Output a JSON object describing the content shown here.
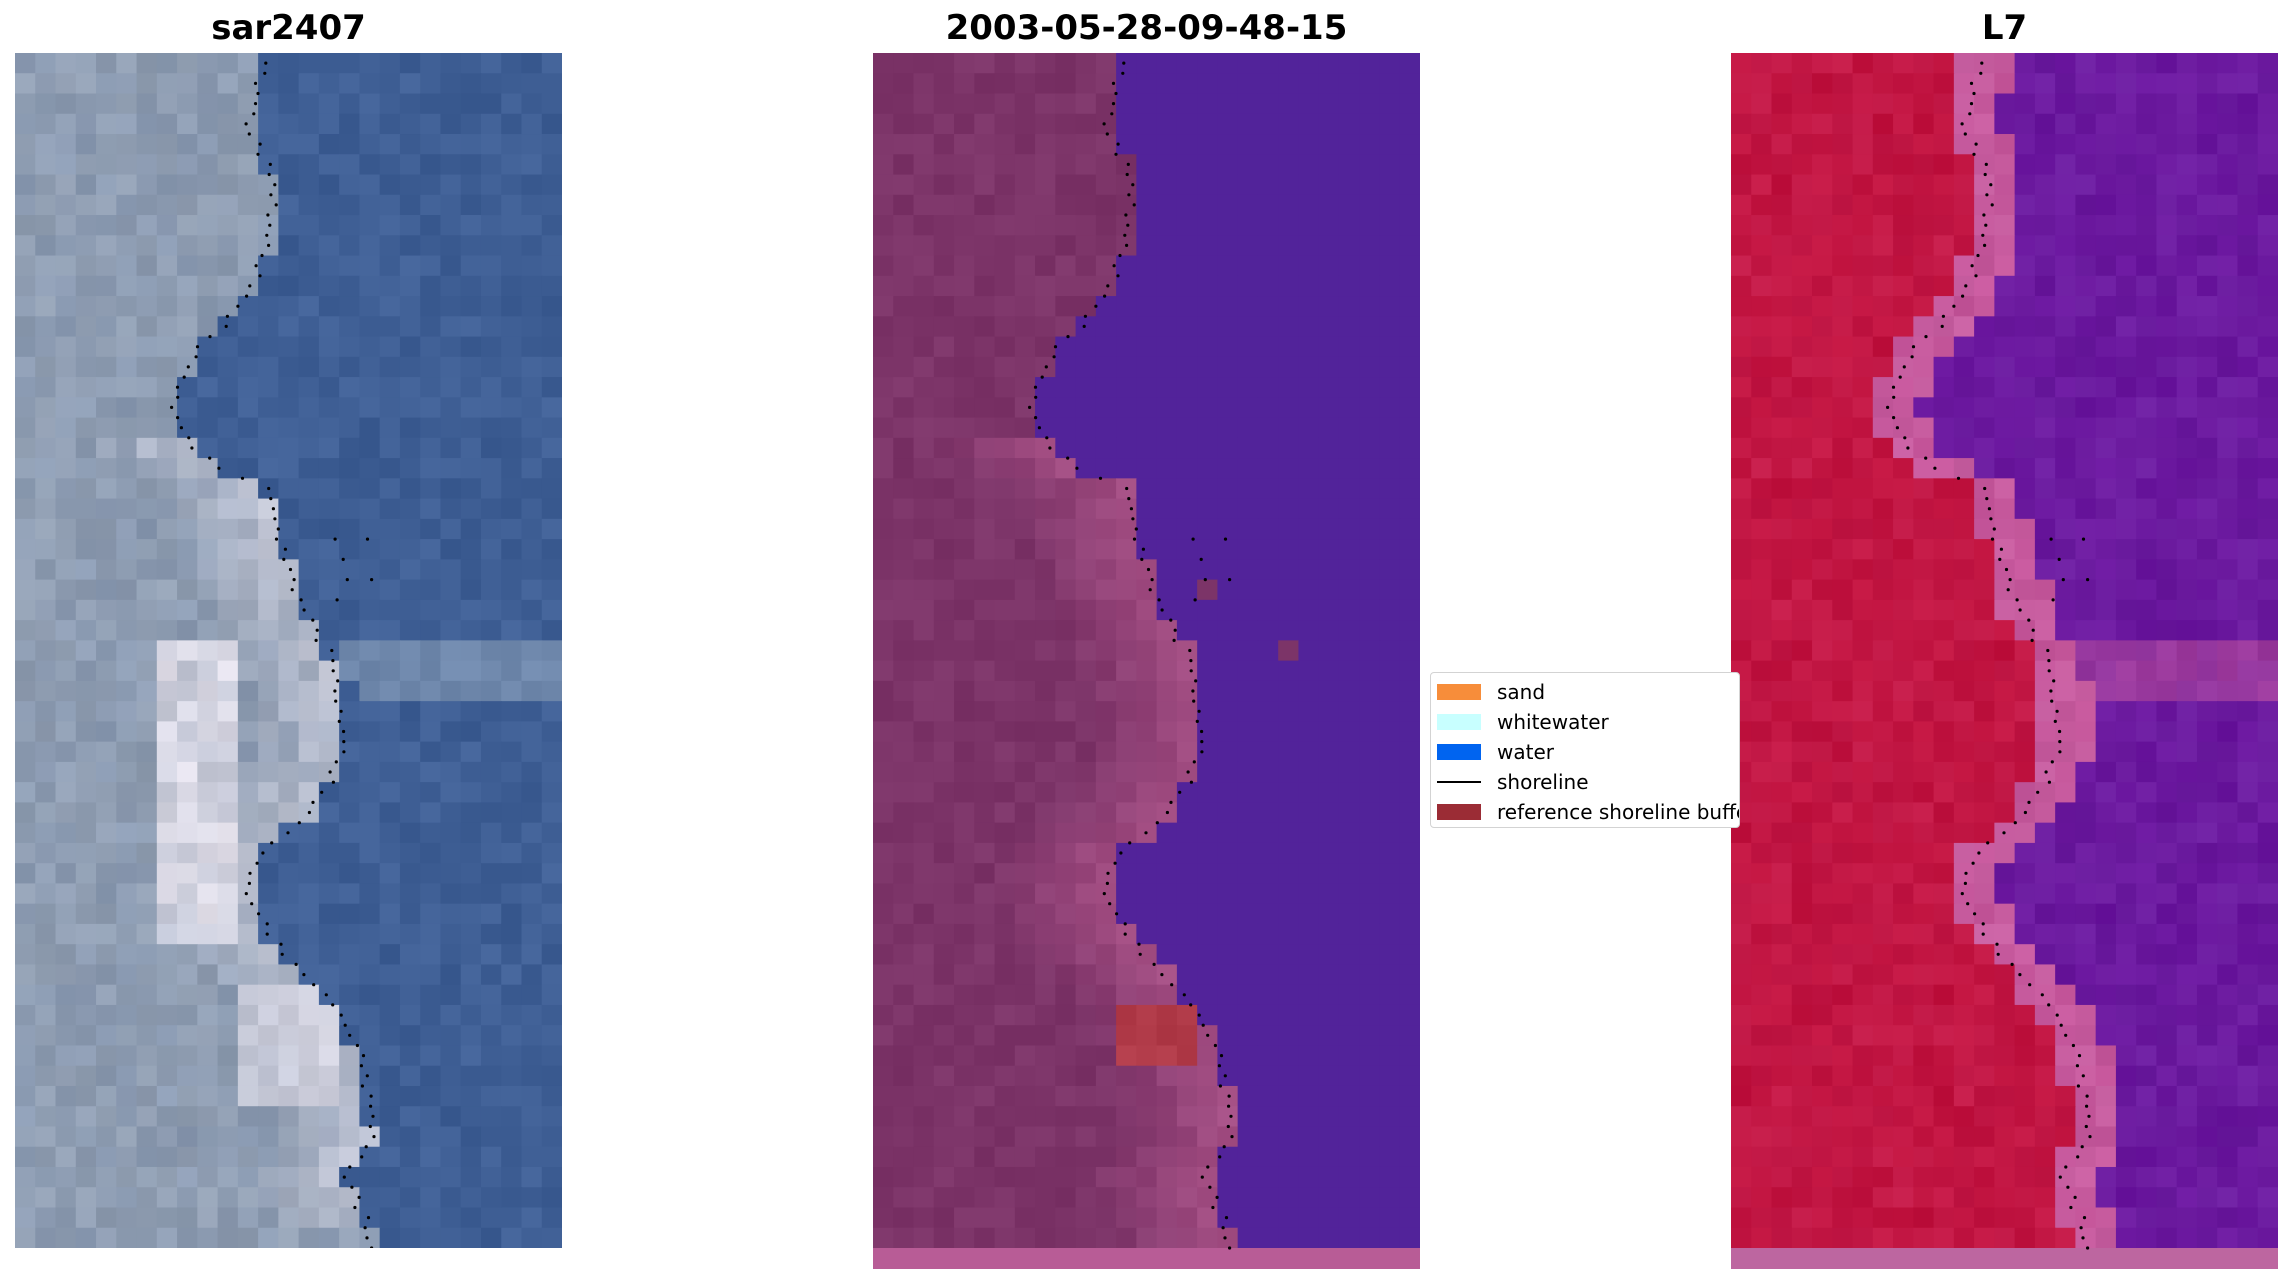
{
  "panels": [
    {
      "title": "sar2407",
      "kind": "rgb"
    },
    {
      "title": "2003-05-28-09-48-15",
      "kind": "classified"
    },
    {
      "title": "L7",
      "kind": "index"
    }
  ],
  "legend": {
    "items": [
      {
        "label": "sand",
        "type": "patch",
        "color": "#f78d3a"
      },
      {
        "label": "whitewater",
        "type": "patch",
        "color": "#c8ffff"
      },
      {
        "label": "water",
        "type": "patch",
        "color": "#0064f0"
      },
      {
        "label": "shoreline",
        "type": "line",
        "color": "#000000"
      },
      {
        "label": "reference shoreline buffer",
        "type": "patch",
        "color": "#9b2c35"
      }
    ]
  },
  "colors": {
    "rgb_land": "#8a9ab2",
    "rgb_water": "#3f5f95",
    "rgb_bright": "#e8e4ee",
    "class_land": "#7c3468",
    "class_water": "#52239a",
    "class_light": "#b55a90",
    "class_buffer": "#b03a48",
    "index_land": "#c0123e",
    "index_water": "#6a169e",
    "index_mid": "#c5559a",
    "shoreline_dots": "#000000"
  }
}
